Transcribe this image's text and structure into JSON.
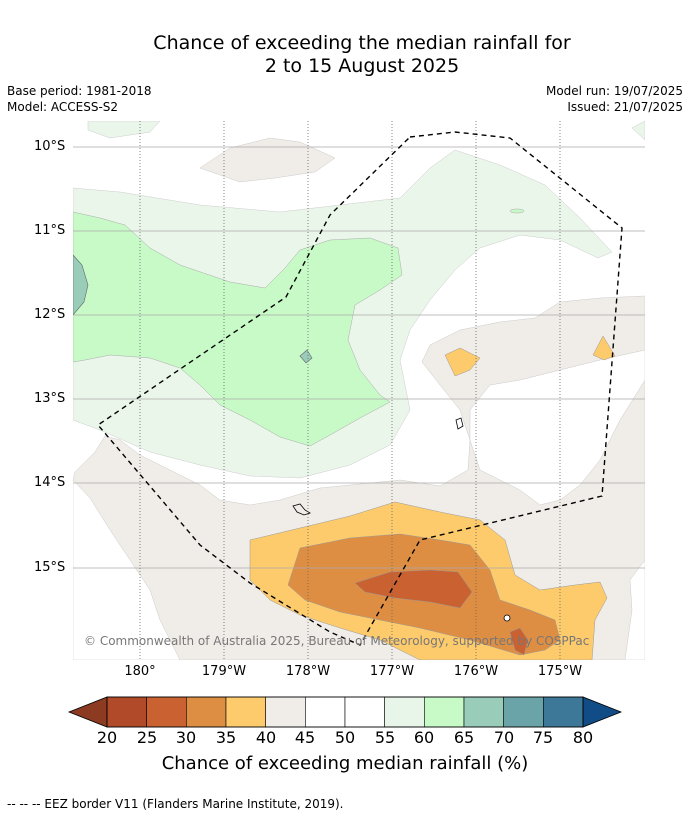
{
  "title": {
    "line1": "Chance of exceeding the median rainfall for",
    "line2": "2 to 15 August 2025"
  },
  "meta": {
    "base_period": "Base period: 1981-2018",
    "model": "Model: ACCESS-S2",
    "model_run": "Model run: 19/07/2025",
    "issued": "Issued: 21/07/2025"
  },
  "axes": {
    "lat_ticks": [
      "10°S",
      "11°S",
      "12°S",
      "13°S",
      "14°S",
      "15°S"
    ],
    "lon_ticks": [
      "180°",
      "179°W",
      "178°W",
      "177°W",
      "176°W",
      "175°W"
    ]
  },
  "colorbar": {
    "labels": [
      "20",
      "25",
      "30",
      "35",
      "40",
      "45",
      "50",
      "55",
      "60",
      "65",
      "70",
      "75",
      "80"
    ],
    "colors": [
      "#8c3a22",
      "#b04a28",
      "#c96130",
      "#de8e43",
      "#fdcb6b",
      "#f0ece7",
      "#ffffff",
      "#ffffff",
      "#e8f5e9",
      "#c8fac8",
      "#99cdb9",
      "#6aa4a8",
      "#3d7899",
      "#124c86"
    ],
    "title": "Chance of exceeding median rainfall (%)"
  },
  "copyright": "© Commonwealth of Australia 2025, Bureau of Meteorology, supported by COSPPac",
  "footnote": "--  --  -- EEZ border V11 (Flanders Marine Institute, 2019)."
}
